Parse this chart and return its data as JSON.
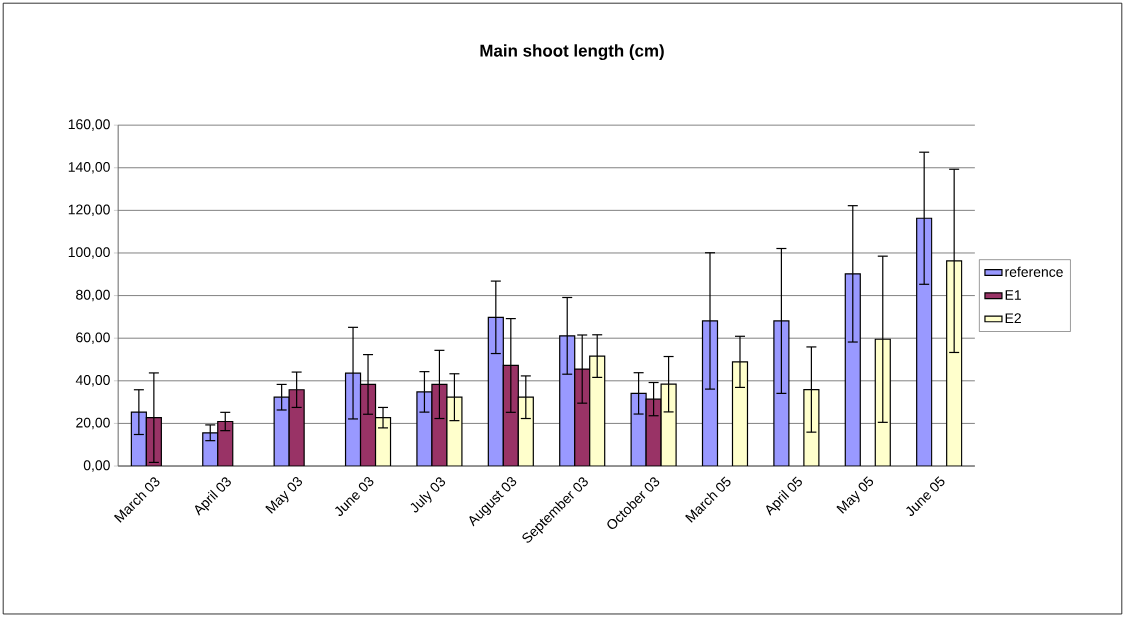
{
  "chart_data": {
    "type": "bar",
    "title": "Main shoot length (cm)",
    "categories": [
      "March 03",
      "April 03",
      "May 03",
      "June 03",
      "July 03",
      "August 03",
      "September 03",
      "October 03",
      "March 05",
      "April 05",
      "May 05",
      "June 05"
    ],
    "series": [
      {
        "name": "reference",
        "color": "#9999ff",
        "values": [
          25.3,
          15.6,
          32.3,
          43.6,
          34.8,
          69.8,
          61.1,
          34.1,
          68.1,
          68.1,
          90.2,
          116.3
        ],
        "errors": [
          10.5,
          3.7,
          6,
          21.5,
          9.5,
          17,
          18,
          9.7,
          32,
          34,
          32,
          31
        ]
      },
      {
        "name": "E1",
        "color": "#993366",
        "values": [
          22.7,
          20.9,
          35.8,
          38.3,
          38.3,
          47.2,
          45.5,
          31.4,
          null,
          null,
          null,
          null
        ],
        "errors": [
          21,
          4.3,
          8.3,
          14,
          16,
          22,
          16,
          7.8,
          null,
          null,
          null,
          null
        ]
      },
      {
        "name": "E2",
        "color": "#ffffcc",
        "values": [
          null,
          null,
          null,
          22.7,
          32.3,
          32.3,
          51.6,
          38.4,
          48.9,
          35.9,
          59.5,
          96.3
        ],
        "errors": [
          null,
          null,
          null,
          4.8,
          11,
          10,
          10,
          13,
          12,
          20,
          39,
          43
        ]
      }
    ],
    "ylim": [
      0,
      160
    ],
    "yticks": [
      {
        "value": 0,
        "label": "0,00"
      },
      {
        "value": 20,
        "label": "20,00"
      },
      {
        "value": 40,
        "label": "40,00"
      },
      {
        "value": 60,
        "label": "60,00"
      },
      {
        "value": 80,
        "label": "80,00"
      },
      {
        "value": 100,
        "label": "100,00"
      },
      {
        "value": 120,
        "label": "120,00"
      },
      {
        "value": 140,
        "label": "140,00"
      },
      {
        "value": 160,
        "label": "160,00"
      }
    ],
    "grid": "y",
    "legend": "right"
  }
}
